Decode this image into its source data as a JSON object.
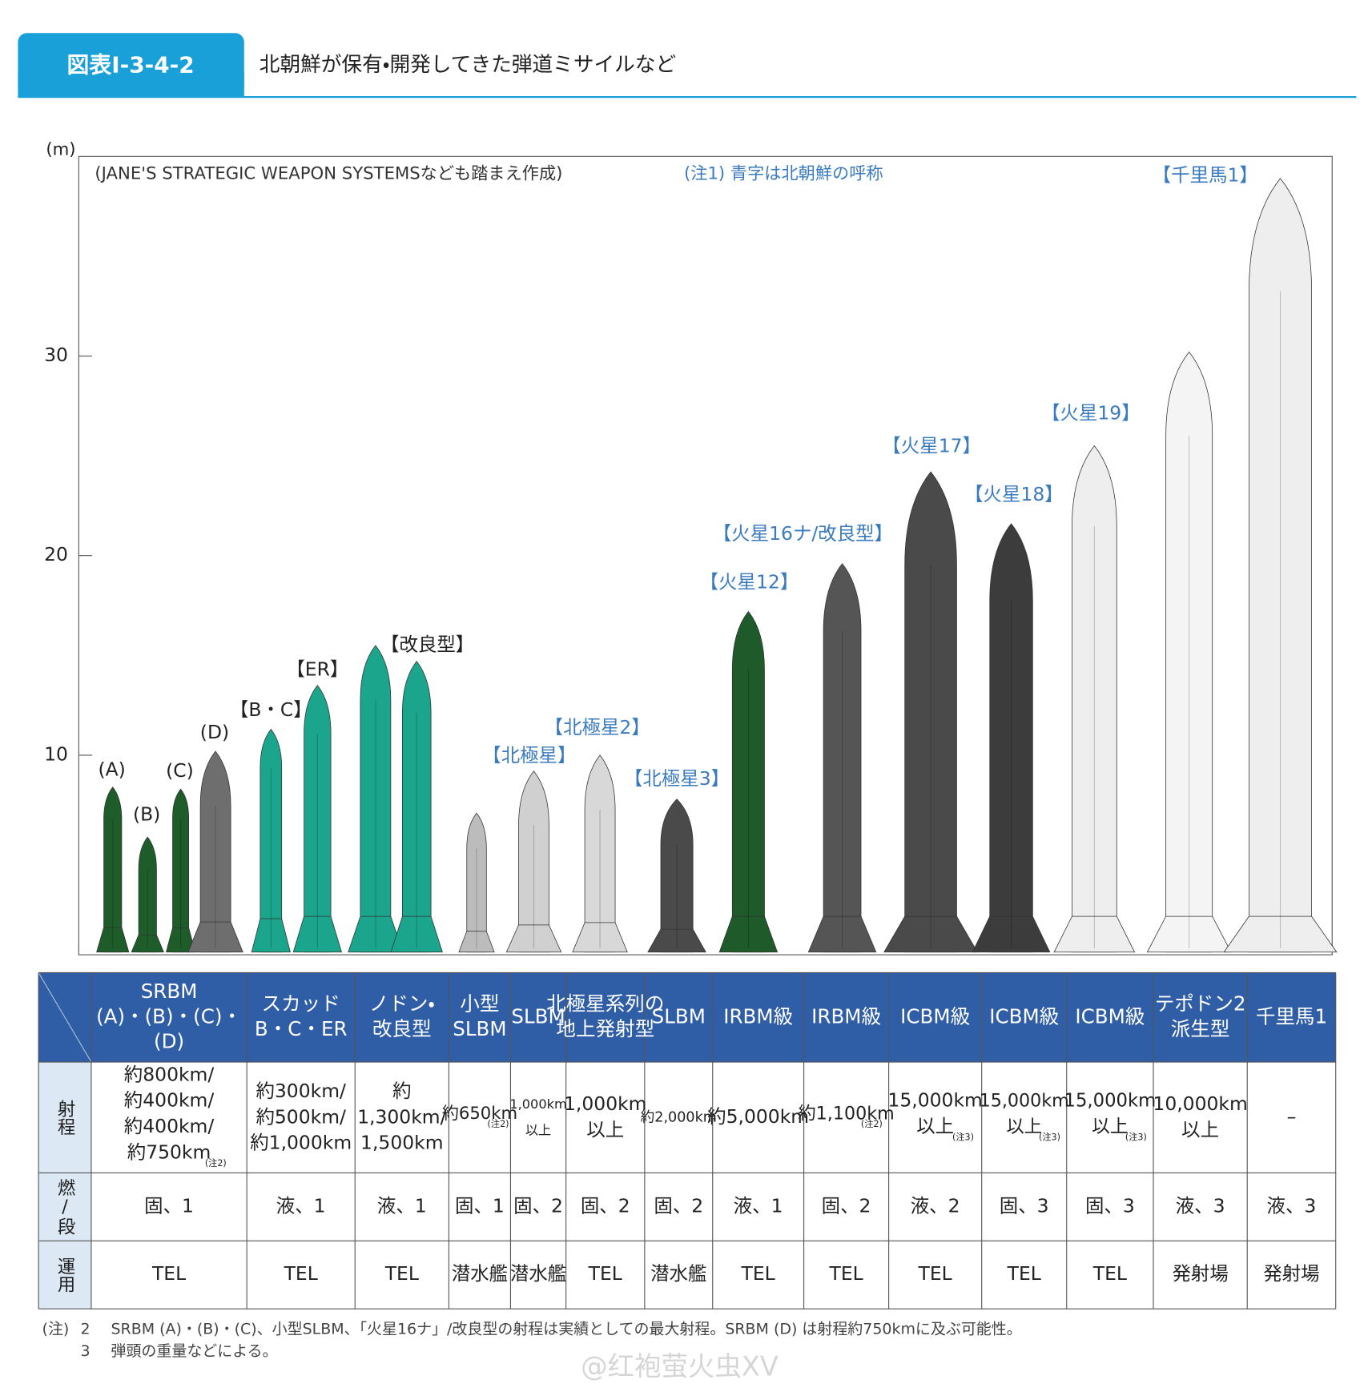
{
  "header": {
    "badge": "図表Ⅰ-3-4-2",
    "title": "北朝鮮が保有・開発してきた弾道ミサイルなど"
  },
  "figure": {
    "y_unit": "(m)",
    "source_note": "(JANE'S STRATEGIC WEAPON SYSTEMSなども踏まえ作成)",
    "note1": "(注1) 青字は北朝鮮の呼称",
    "ylim": [
      0,
      40
    ],
    "yticks": [
      10,
      20,
      30
    ],
    "missiles": [
      {
        "label": "(A)",
        "label_color": "#222222",
        "height": 8.4,
        "color": "#1e5c2a"
      },
      {
        "label": "(B)",
        "label_color": "#222222",
        "height": 5.9,
        "color": "#1e5c2a"
      },
      {
        "label": "(C)",
        "label_color": "#222222",
        "height": 8.3,
        "color": "#1e5c2a"
      },
      {
        "label": "(D)",
        "label_color": "#222222",
        "height": 10.2,
        "color": "#6e6e6e"
      },
      {
        "label": "【B・C】",
        "label_color": "#222222",
        "height": 11.3,
        "color": "#1aa58c"
      },
      {
        "label": "【ER】",
        "label_color": "#222222",
        "height": 13.5,
        "color": "#1aa58c"
      },
      {
        "label": null,
        "label_color": "#222222",
        "height": 15.5,
        "color": "#1aa58c"
      },
      {
        "label": "【改良型】",
        "label_color": "#222222",
        "height": 14.7,
        "color": "#1aa58c"
      },
      {
        "label": null,
        "label_color": "#3a7bbf",
        "height": 7.1,
        "color": "#bcbcbc"
      },
      {
        "label": "【北極星】",
        "label_color": "#3a7bbf",
        "height": 9.2,
        "color": "#d0d0d0"
      },
      {
        "label": "【北極星2】",
        "label_color": "#3a7bbf",
        "height": 10.0,
        "color": "#d8d8d8"
      },
      {
        "label": "【北極星3】",
        "label_color": "#3a7bbf",
        "height": 7.8,
        "color": "#4a4a4a"
      },
      {
        "label": "【火星12】",
        "label_color": "#3a7bbf",
        "height": 17.2,
        "color": "#1f5a2a"
      },
      {
        "label": "【火星16ナ/改良型】",
        "label_color": "#3a7bbf",
        "height": 19.6,
        "color": "#555555"
      },
      {
        "label": "【火星17】",
        "label_color": "#3a7bbf",
        "height": 24.2,
        "color": "#4a4a4a"
      },
      {
        "label": "【火星18】",
        "label_color": "#3a7bbf",
        "height": 21.6,
        "color": "#3c3c3c"
      },
      {
        "label": "【火星19】",
        "label_color": "#3a7bbf",
        "height": 25.5,
        "color": "#eeeeee"
      },
      {
        "label": null,
        "label_color": "#3a7bbf",
        "height": 30.2,
        "color": "#f4f4f4"
      },
      {
        "label": "【千里馬1】",
        "label_color": "#3a7bbf",
        "height": 38.9,
        "color": "#eeeeee"
      }
    ]
  },
  "table": {
    "header": [
      "SRBM\n(A)・(B)・(C)・\n(D)",
      "スカッド\nB・C・ER",
      "ノドン・\n改良型",
      "小型\nSLBM",
      "SLBM",
      "北極星系列の\n地上発射型",
      "SLBM",
      "IRBM級",
      "IRBM級",
      "ICBM級",
      "ICBM級",
      "ICBM級",
      "テポドン2\n派生型",
      "千里馬1"
    ],
    "rows": [
      {
        "title": "射程",
        "cells": [
          {
            "text": "約800km/\n約400km/\n約400km/\n約750km",
            "note": "(注2)"
          },
          "約300km/\n約500km/\n約1,000km",
          "約\n1,300km/\n1,500km",
          {
            "text": "約650km",
            "note": "(注2)"
          },
          "1,000km\n以上",
          "1,000km\n以上",
          "約2,000km",
          "約5,000km",
          {
            "text": "約1,100km",
            "note": "(注2)"
          },
          {
            "text": "15,000km\n以上",
            "note": "(注3)"
          },
          {
            "text": "15,000km\n以上",
            "note": "(注3)"
          },
          {
            "text": "15,000km\n以上",
            "note": "(注3)"
          },
          "10,000km\n以上",
          "–"
        ]
      },
      {
        "title": "燃/段",
        "cells": [
          "固、1",
          "液、1",
          "液、1",
          "固、1",
          "固、2",
          "固、2",
          "固、2",
          "液、1",
          "固、2",
          "液、2",
          "固、3",
          "固、3",
          "液、3",
          "液、3"
        ]
      },
      {
        "title": "運用",
        "cells": [
          "TEL",
          "TEL",
          "TEL",
          "潜水艦",
          "潜水艦",
          "TEL",
          "潜水艦",
          "TEL",
          "TEL",
          "TEL",
          "TEL",
          "TEL",
          "発射場",
          "発射場"
        ]
      }
    ]
  },
  "footnotes": {
    "label": "(注)",
    "items": [
      {
        "num": "2",
        "text": "SRBM (A)・(B)・(C)、小型SLBM、「火星16ナ」/改良型の射程は実績としての最大射程。SRBM (D) は射程約750kmに及ぶ可能性。"
      },
      {
        "num": "3",
        "text": "弾頭の重量などによる。"
      }
    ]
  },
  "watermark": "@红袍萤火虫XV"
}
